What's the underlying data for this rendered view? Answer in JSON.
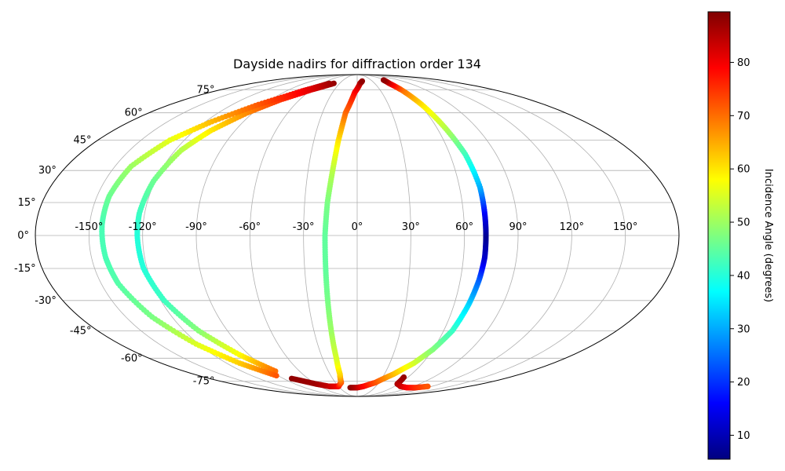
{
  "chart_data": {
    "type": "scatter",
    "projection": "mollweide",
    "title": "Dayside nadirs for diffraction order 134",
    "grid": true,
    "lon_ticks": [
      {
        "value": -150,
        "label": "-150°"
      },
      {
        "value": -120,
        "label": "-120°"
      },
      {
        "value": -90,
        "label": "-90°"
      },
      {
        "value": -60,
        "label": "-60°"
      },
      {
        "value": -30,
        "label": "-30°"
      },
      {
        "value": 0,
        "label": "0°"
      },
      {
        "value": 30,
        "label": "30°"
      },
      {
        "value": 60,
        "label": "60°"
      },
      {
        "value": 90,
        "label": "90°"
      },
      {
        "value": 120,
        "label": "120°"
      },
      {
        "value": 150,
        "label": "150°"
      }
    ],
    "lat_ticks": [
      {
        "value": 75,
        "label": "75°"
      },
      {
        "value": 60,
        "label": "60°"
      },
      {
        "value": 45,
        "label": "45°"
      },
      {
        "value": 30,
        "label": "30°"
      },
      {
        "value": 15,
        "label": "15°"
      },
      {
        "value": 0,
        "label": "0°"
      },
      {
        "value": -15,
        "label": "-15°"
      },
      {
        "value": -30,
        "label": "-30°"
      },
      {
        "value": -45,
        "label": "-45°"
      },
      {
        "value": -60,
        "label": "-60°"
      },
      {
        "value": -75,
        "label": "-75°"
      }
    ],
    "colorbar": {
      "label": "Incidence Angle (degrees)",
      "range": [
        5.5,
        89.5
      ],
      "colormap": "jet",
      "ticks": [
        {
          "value": 10,
          "label": "10"
        },
        {
          "value": 20,
          "label": "20"
        },
        {
          "value": 30,
          "label": "30"
        },
        {
          "value": 40,
          "label": "40"
        },
        {
          "value": 50,
          "label": "50"
        },
        {
          "value": 60,
          "label": "60"
        },
        {
          "value": 70,
          "label": "70"
        },
        {
          "value": 80,
          "label": "80"
        }
      ]
    },
    "tracks": [
      [
        [
          -40,
          80,
          88
        ],
        [
          -60,
          75,
          82
        ],
        [
          -80,
          68,
          75
        ],
        [
          -95,
          60,
          68
        ],
        [
          -108,
          50,
          60
        ],
        [
          -116,
          40,
          52
        ],
        [
          -121,
          25,
          46
        ],
        [
          -123,
          10,
          42
        ],
        [
          -123,
          0,
          40
        ],
        [
          -122,
          -15,
          40
        ],
        [
          -118,
          -30,
          42
        ],
        [
          -110,
          -45,
          48
        ],
        [
          -98,
          -58,
          58
        ],
        [
          -85,
          -68,
          70
        ]
      ],
      [
        [
          -48,
          80,
          87
        ],
        [
          -70,
          74,
          80
        ],
        [
          -95,
          65,
          72
        ],
        [
          -115,
          55,
          64
        ],
        [
          -130,
          45,
          56
        ],
        [
          -140,
          32,
          50
        ],
        [
          -143,
          18,
          46
        ],
        [
          -143,
          5,
          43
        ],
        [
          -142,
          -10,
          43
        ],
        [
          -140,
          -22,
          44
        ],
        [
          -133,
          -38,
          47
        ],
        [
          -122,
          -52,
          55
        ],
        [
          -108,
          -63,
          62
        ],
        [
          -92,
          -71,
          72
        ]
      ],
      [
        [
          -80,
          -73,
          88
        ],
        [
          -60,
          -77,
          87
        ],
        [
          -45,
          -79,
          84
        ],
        [
          -30,
          -79,
          80
        ],
        [
          -22,
          -76,
          72
        ],
        [
          -19,
          -70,
          62
        ],
        [
          -18,
          -60,
          55
        ],
        [
          -18,
          -45,
          50
        ],
        [
          -18,
          -30,
          47
        ],
        [
          -18,
          -15,
          45
        ],
        [
          -18,
          0,
          45
        ],
        [
          -17,
          15,
          47
        ],
        [
          -15,
          30,
          52
        ],
        [
          -13,
          45,
          60
        ],
        [
          -10,
          60,
          70
        ],
        [
          -3,
          73,
          78
        ],
        [
          5,
          80,
          84
        ],
        [
          10,
          82,
          88
        ]
      ],
      [
        [
          -12,
          -80,
          89
        ],
        [
          0,
          -80,
          85
        ],
        [
          10,
          -79,
          80
        ],
        [
          25,
          -76,
          73
        ],
        [
          40,
          -70,
          64
        ],
        [
          52,
          -63,
          55
        ],
        [
          60,
          -55,
          48
        ],
        [
          66,
          -45,
          42
        ],
        [
          69,
          -32,
          34
        ],
        [
          71,
          -20,
          24
        ],
        [
          72,
          -10,
          12
        ],
        [
          72,
          0,
          7
        ],
        [
          72,
          10,
          15
        ],
        [
          72,
          22,
          30
        ],
        [
          70,
          38,
          42
        ],
        [
          66,
          52,
          52
        ],
        [
          62,
          65,
          60
        ],
        [
          58,
          75,
          70
        ],
        [
          55,
          80,
          82
        ],
        [
          57,
          83,
          88
        ]
      ],
      [
        [
          55,
          -72,
          88
        ],
        [
          58,
          -77,
          86
        ],
        [
          70,
          -79,
          84
        ],
        [
          85,
          -80,
          80
        ],
        [
          100,
          -80,
          76
        ],
        [
          114,
          -79,
          72
        ]
      ]
    ]
  }
}
